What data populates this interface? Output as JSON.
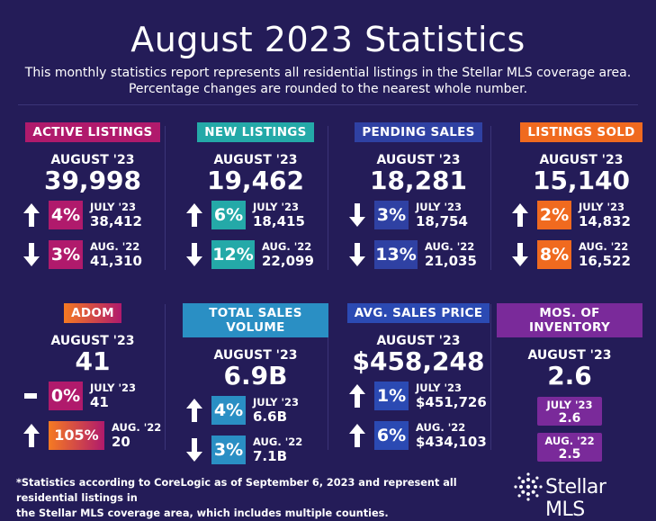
{
  "header": {
    "title": "August 2023 Statistics",
    "subtitle_line1": "This monthly statistics report represents all residential listings in the Stellar MLS coverage area.",
    "subtitle_line2": "Percentage changes are rounded to the nearest whole number."
  },
  "cards": [
    {
      "label": "ACTIVE LISTINGS",
      "month": "AUGUST '23",
      "value": "39,998",
      "r1": {
        "dir": "up",
        "pct": "4%",
        "lbl": "JULY '23",
        "val": "38,412"
      },
      "r2": {
        "dir": "down",
        "pct": "3%",
        "lbl": "AUG. '22",
        "val": "41,310"
      }
    },
    {
      "label": "NEW LISTINGS",
      "month": "AUGUST '23",
      "value": "19,462",
      "r1": {
        "dir": "up",
        "pct": "6%",
        "lbl": "JULY '23",
        "val": "18,415"
      },
      "r2": {
        "dir": "down",
        "pct": "12%",
        "lbl": "AUG. '22",
        "val": "22,099"
      }
    },
    {
      "label": "PENDING SALES",
      "month": "AUGUST '23",
      "value": "18,281",
      "r1": {
        "dir": "down",
        "pct": "3%",
        "lbl": "JULY '23",
        "val": "18,754"
      },
      "r2": {
        "dir": "down",
        "pct": "13%",
        "lbl": "AUG. '22",
        "val": "21,035"
      }
    },
    {
      "label": "LISTINGS SOLD",
      "month": "AUGUST '23",
      "value": "15,140",
      "r1": {
        "dir": "up",
        "pct": "2%",
        "lbl": "JULY '23",
        "val": "14,832"
      },
      "r2": {
        "dir": "down",
        "pct": "8%",
        "lbl": "AUG. '22",
        "val": "16,522"
      }
    },
    {
      "label": "ADOM",
      "month": "AUGUST '23",
      "value": "41",
      "r1": {
        "dir": "flat",
        "pct": "0%",
        "lbl": "JULY '23",
        "val": "41"
      },
      "r2": {
        "dir": "up",
        "pct": "105%",
        "lbl": "AUG. '22",
        "val": "20"
      }
    },
    {
      "label": "TOTAL SALES VOLUME",
      "month": "AUGUST '23",
      "value": "6.9B",
      "r1": {
        "dir": "up",
        "pct": "4%",
        "lbl": "JULY '23",
        "val": "6.6B"
      },
      "r2": {
        "dir": "down",
        "pct": "3%",
        "lbl": "AUG. '22",
        "val": "7.1B"
      }
    },
    {
      "label": "AVG. SALES PRICE",
      "month": "AUGUST '23",
      "value": "$458,248",
      "r1": {
        "dir": "up",
        "pct": "1%",
        "lbl": "JULY '23",
        "val": "$451,726"
      },
      "r2": {
        "dir": "up",
        "pct": "6%",
        "lbl": "AUG. '22",
        "val": "$434,103"
      }
    },
    {
      "label": "MOS. OF INVENTORY",
      "month": "AUGUST '23",
      "value": "2.6",
      "p1": {
        "lbl": "JULY '23",
        "val": "2.6"
      },
      "p2": {
        "lbl": "AUG. '22",
        "val": "2.5"
      }
    }
  ],
  "colors": {
    "background": "#241c58",
    "active": "#b01a6c",
    "new": "#24a9a8",
    "pending": "#2f41a3",
    "sold": "#f06a1f",
    "adom_start": "#f57a22",
    "adom_end": "#b01a6c",
    "volume": "#2a8fc4",
    "price": "#2b4ab3",
    "inventory": "#7a2a9a"
  },
  "footnote": {
    "line1": "*Statistics according to CoreLogic as of September 6, 2023 and represent all residential listings in",
    "line2": "the Stellar MLS coverage area, which includes multiple counties."
  },
  "logo": {
    "text": "Stellar MLS",
    "icon": "star-logo-icon"
  }
}
